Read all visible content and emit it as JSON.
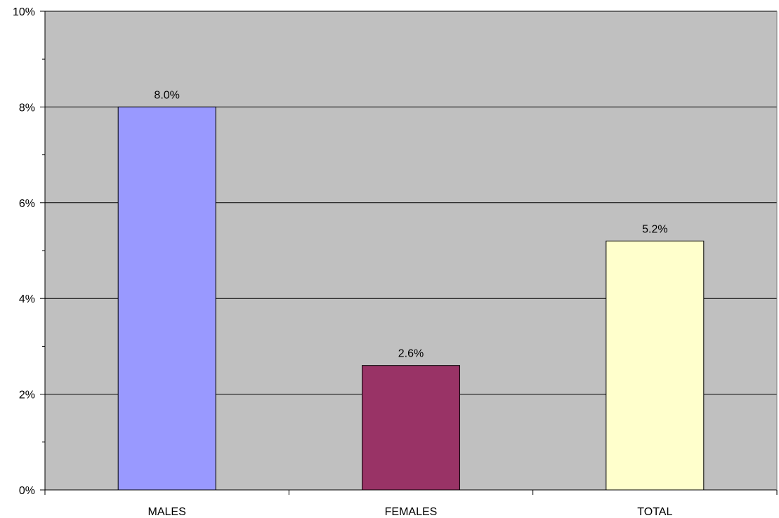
{
  "chart_data": {
    "type": "bar",
    "categories": [
      "MALES",
      "FEMALES",
      "TOTAL"
    ],
    "values": [
      8.0,
      2.6,
      5.2
    ],
    "value_labels": [
      "8.0%",
      "2.6%",
      "5.2%"
    ],
    "bar_colors": [
      "#9999FF",
      "#993366",
      "#FFFFCC"
    ],
    "plot_background": "#C0C0C0",
    "ylim": [
      0,
      10
    ],
    "y_ticks": [
      0,
      2,
      4,
      6,
      8,
      10
    ],
    "y_tick_labels": [
      "0%",
      "2%",
      "4%",
      "6%",
      "8%",
      "10%"
    ],
    "y_minor_step": 1,
    "grid": true,
    "legend": "none"
  }
}
